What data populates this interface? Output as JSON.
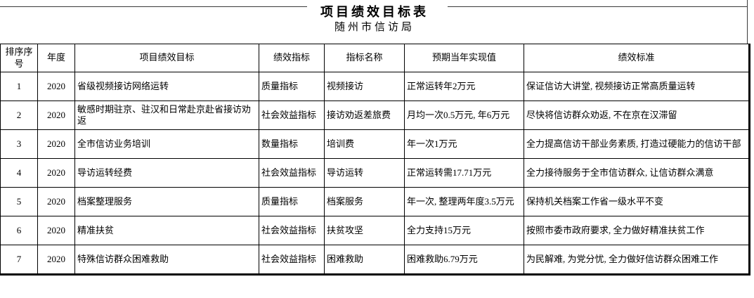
{
  "page": {
    "title": "项目绩效目标表",
    "subtitle": "随州市信访局"
  },
  "table": {
    "headers": [
      "排序序号",
      "年度",
      "项目绩效目标",
      "绩效指标",
      "指标名称",
      "预期当年实现值",
      "绩效标准"
    ],
    "rows": [
      [
        "1",
        "2020",
        "省级视频接访网络运转",
        "质量指标",
        "视频接访",
        "正常运转年2万元",
        "保证信访大讲堂, 视频接访正常高质量运转"
      ],
      [
        "2",
        "2020",
        "敏感时期驻京、驻汉和日常赴京赴省接访劝返",
        "社会效益指标",
        "接访劝返差旅费",
        "月均一次0.5万元, 年6万元",
        "尽快将信访群众劝返, 不在京在汉滞留"
      ],
      [
        "3",
        "2020",
        "全市信访业务培训",
        "数量指标",
        "培训费",
        "年一次1万元",
        "全力提高信访干部业务素质, 打造过硬能力的信访干部"
      ],
      [
        "4",
        "2020",
        "导访运转经费",
        "社会效益指标",
        "导访运转",
        "正常运转需17.71万元",
        "全力接待服务于全市信访群众, 让信访群众满意"
      ],
      [
        "5",
        "2020",
        "档案整理服务",
        "质量指标",
        "档案服务",
        "年一次, 整理两年度3.5万元",
        "保持机关档案工作省一级水平不变"
      ],
      [
        "6",
        "2020",
        "精准扶贫",
        "社会效益指标",
        "扶贫攻坚",
        "全力支持15万元",
        "按照市委市政府要求, 全力做好精准扶贫工作"
      ],
      [
        "7",
        "2020",
        "特殊信访群众困难救助",
        "社会效益指标",
        "困难救助",
        "困难救助6.79万元",
        "为民解难, 为党分忧, 全力做好信访群众困难工作"
      ]
    ]
  }
}
